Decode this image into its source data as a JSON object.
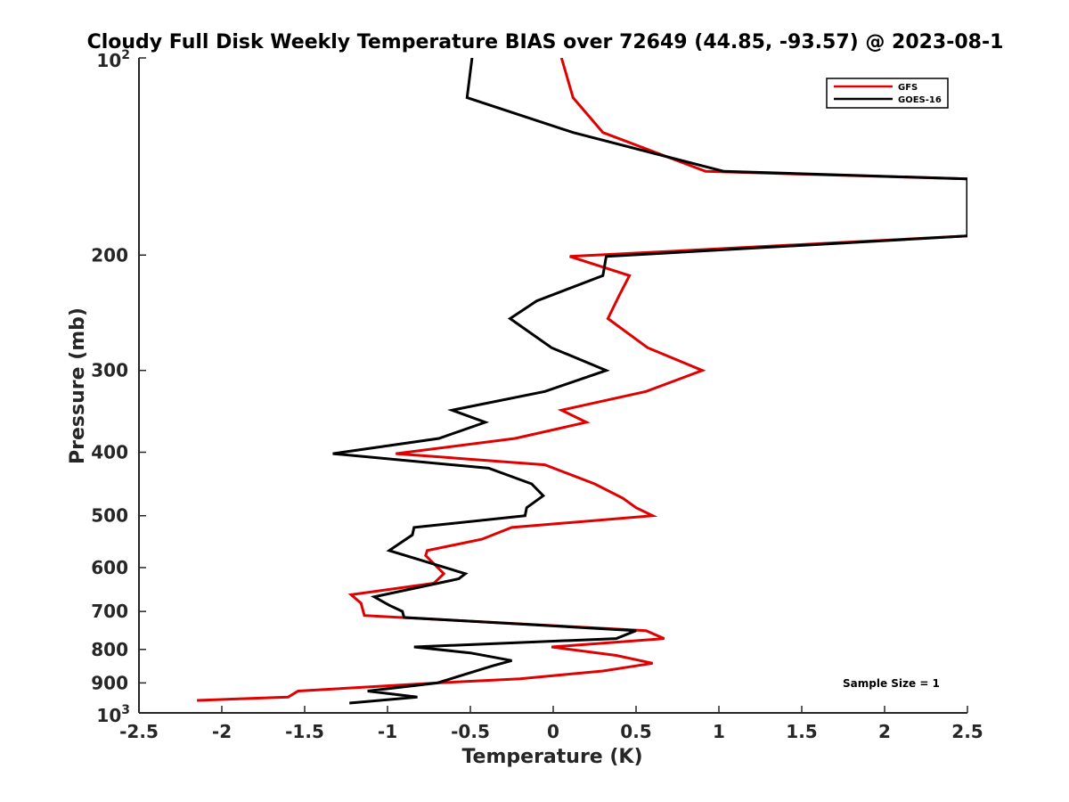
{
  "chart_data": {
    "type": "line",
    "title": "Cloudy Full Disk Weekly Temperature BIAS over 72649 (44.85, -93.57) @ 2023-08-1",
    "xlabel": "Temperature (K)",
    "ylabel": "Pressure (mb)",
    "xlim": [
      -2.5,
      2.5
    ],
    "ylim": [
      100,
      1000
    ],
    "yscale": "log",
    "yreversed": true,
    "xticks": [
      "-2.5",
      "-2",
      "-1.5",
      "-1",
      "-0.5",
      "0",
      "0.5",
      "1",
      "1.5",
      "2",
      "2.5"
    ],
    "yticks": [
      {
        "value": 100,
        "base": "10",
        "exp": "2"
      },
      {
        "value": 200,
        "label": "200"
      },
      {
        "value": 300,
        "label": "300"
      },
      {
        "value": 400,
        "label": "400"
      },
      {
        "value": 500,
        "label": "500"
      },
      {
        "value": 600,
        "label": "600"
      },
      {
        "value": 700,
        "label": "700"
      },
      {
        "value": 800,
        "label": "800"
      },
      {
        "value": 900,
        "label": "900"
      },
      {
        "value": 1000,
        "base": "10",
        "exp": "3"
      }
    ],
    "legend_position": "top-right",
    "annotation": "Sample Size = 1",
    "series": [
      {
        "name": "GFS",
        "color": "#e00000",
        "points": [
          [
            0.05,
            100
          ],
          [
            0.12,
            115
          ],
          [
            0.3,
            130
          ],
          [
            0.92,
            149
          ],
          [
            2.5,
            153
          ],
          [
            2.5,
            187
          ],
          [
            0.1,
            201
          ],
          [
            0.46,
            215
          ],
          [
            0.4,
            230
          ],
          [
            0.33,
            250
          ],
          [
            0.57,
            277
          ],
          [
            0.9,
            300
          ],
          [
            0.56,
            323
          ],
          [
            0.05,
            345
          ],
          [
            0.2,
            360
          ],
          [
            -0.23,
            381
          ],
          [
            -0.95,
            402
          ],
          [
            -0.05,
            418
          ],
          [
            0.25,
            447
          ],
          [
            0.42,
            470
          ],
          [
            0.5,
            486
          ],
          [
            0.6,
            500
          ],
          [
            -0.25,
            521
          ],
          [
            -0.43,
            543
          ],
          [
            -0.76,
            565
          ],
          [
            -0.77,
            575
          ],
          [
            -0.66,
            613
          ],
          [
            -0.72,
            634
          ],
          [
            -1.22,
            660
          ],
          [
            -1.16,
            680
          ],
          [
            -1.14,
            710
          ],
          [
            0.56,
            749
          ],
          [
            0.67,
            770
          ],
          [
            -0.01,
            793
          ],
          [
            0.38,
            817
          ],
          [
            0.6,
            840
          ],
          [
            0.3,
            863
          ],
          [
            -0.2,
            887
          ],
          [
            -0.7,
            900
          ],
          [
            -1.54,
            926
          ],
          [
            -1.6,
            946
          ],
          [
            -2.15,
            957
          ]
        ]
      },
      {
        "name": "GOES-16",
        "color": "#000000",
        "points": [
          [
            -0.49,
            100
          ],
          [
            -0.52,
            115
          ],
          [
            0.12,
            130
          ],
          [
            1.03,
            149
          ],
          [
            2.5,
            153
          ],
          [
            2.5,
            187
          ],
          [
            0.32,
            201
          ],
          [
            0.3,
            215
          ],
          [
            -0.1,
            235
          ],
          [
            -0.26,
            250
          ],
          [
            -0.01,
            277
          ],
          [
            0.32,
            300
          ],
          [
            -0.05,
            323
          ],
          [
            -0.61,
            345
          ],
          [
            -0.41,
            360
          ],
          [
            -0.69,
            381
          ],
          [
            -1.33,
            402
          ],
          [
            -0.39,
            423
          ],
          [
            -0.13,
            447
          ],
          [
            -0.06,
            466
          ],
          [
            -0.16,
            486
          ],
          [
            -0.17,
            500
          ],
          [
            -0.84,
            521
          ],
          [
            -0.85,
            535
          ],
          [
            -0.99,
            565
          ],
          [
            -0.53,
            613
          ],
          [
            -0.57,
            624
          ],
          [
            -1.08,
            665
          ],
          [
            -0.99,
            685
          ],
          [
            -0.91,
            700
          ],
          [
            -0.9,
            715
          ],
          [
            0.5,
            749
          ],
          [
            0.38,
            770
          ],
          [
            -0.84,
            793
          ],
          [
            -0.5,
            810
          ],
          [
            -0.25,
            832
          ],
          [
            -0.37,
            848
          ],
          [
            -0.7,
            900
          ],
          [
            -1.12,
            926
          ],
          [
            -0.82,
            946
          ],
          [
            -1.23,
            966
          ]
        ]
      }
    ]
  }
}
